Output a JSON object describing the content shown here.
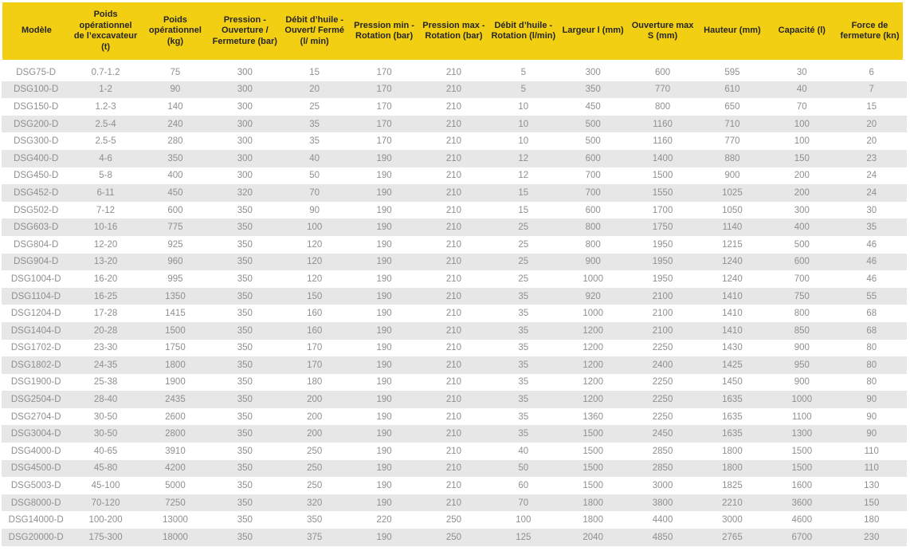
{
  "colors": {
    "header_bg": "#f3cf14",
    "header_text": "#262626",
    "row_bg": "#ffffff",
    "row_alt_bg": "#e7e7e7",
    "cell_text": "#8f8f8f"
  },
  "chart_data": {
    "type": "table",
    "columns": [
      "Modèle",
      "Poids opérationnel de l’excavateur (t)",
      "Poids opérationnel (kg)",
      "Pression - Ouverture / Fermeture (bar)",
      "Débit d’huile - Ouvert/ Fermé (l/ min)",
      "Pression min - Rotation (bar)",
      "Pression max - Rotation (bar)",
      "Débit d’huile - Rotation (l/min)",
      "Largeur l (mm)",
      "Ouverture max S (mm)",
      "Hauteur (mm)",
      "Capacité (l)",
      "Force de fermeture (kn)"
    ],
    "rows": [
      [
        "DSG75-D",
        "0.7-1.2",
        "75",
        "300",
        "15",
        "170",
        "210",
        "5",
        "300",
        "600",
        "595",
        "30",
        "6"
      ],
      [
        "DSG100-D",
        "1-2",
        "90",
        "300",
        "20",
        "170",
        "210",
        "5",
        "350",
        "770",
        "610",
        "40",
        "7"
      ],
      [
        "DSG150-D",
        "1.2-3",
        "140",
        "300",
        "25",
        "170",
        "210",
        "10",
        "450",
        "800",
        "650",
        "70",
        "15"
      ],
      [
        "DSG200-D",
        "2.5-4",
        "240",
        "300",
        "35",
        "170",
        "210",
        "10",
        "500",
        "1160",
        "710",
        "100",
        "20"
      ],
      [
        "DSG300-D",
        "2.5-5",
        "280",
        "300",
        "35",
        "170",
        "210",
        "10",
        "500",
        "1160",
        "770",
        "100",
        "20"
      ],
      [
        "DSG400-D",
        "4-6",
        "350",
        "300",
        "40",
        "190",
        "210",
        "12",
        "600",
        "1400",
        "880",
        "150",
        "23"
      ],
      [
        "DSG450-D",
        "5-8",
        "400",
        "300",
        "50",
        "190",
        "210",
        "12",
        "700",
        "1500",
        "900",
        "200",
        "24"
      ],
      [
        "DSG452-D",
        "6-11",
        "450",
        "320",
        "70",
        "190",
        "210",
        "15",
        "700",
        "1550",
        "1025",
        "200",
        "24"
      ],
      [
        "DSG502-D",
        "7-12",
        "600",
        "350",
        "90",
        "190",
        "210",
        "15",
        "600",
        "1700",
        "1050",
        "300",
        "30"
      ],
      [
        "DSG603-D",
        "10-16",
        "775",
        "350",
        "100",
        "190",
        "210",
        "25",
        "800",
        "1750",
        "1140",
        "400",
        "35"
      ],
      [
        "DSG804-D",
        "12-20",
        "925",
        "350",
        "120",
        "190",
        "210",
        "25",
        "800",
        "1950",
        "1215",
        "500",
        "46"
      ],
      [
        "DSG904-D",
        "13-20",
        "960",
        "350",
        "120",
        "190",
        "210",
        "25",
        "900",
        "1950",
        "1240",
        "600",
        "46"
      ],
      [
        "DSG1004-D",
        "16-20",
        "995",
        "350",
        "120",
        "190",
        "210",
        "25",
        "1000",
        "1950",
        "1240",
        "700",
        "46"
      ],
      [
        "DSG1104-D",
        "16-25",
        "1350",
        "350",
        "150",
        "190",
        "210",
        "35",
        "920",
        "2100",
        "1410",
        "750",
        "55"
      ],
      [
        "DSG1204-D",
        "17-28",
        "1415",
        "350",
        "160",
        "190",
        "210",
        "35",
        "1000",
        "2100",
        "1410",
        "800",
        "68"
      ],
      [
        "DSG1404-D",
        "20-28",
        "1500",
        "350",
        "160",
        "190",
        "210",
        "35",
        "1200",
        "2100",
        "1410",
        "850",
        "68"
      ],
      [
        "DSG1702-D",
        "23-30",
        "1750",
        "350",
        "170",
        "190",
        "210",
        "35",
        "1200",
        "2250",
        "1430",
        "900",
        "80"
      ],
      [
        "DSG1802-D",
        "24-35",
        "1800",
        "350",
        "170",
        "190",
        "210",
        "35",
        "1200",
        "2400",
        "1425",
        "950",
        "80"
      ],
      [
        "DSG1900-D",
        "25-38",
        "1900",
        "350",
        "180",
        "190",
        "210",
        "35",
        "1200",
        "2250",
        "1450",
        "900",
        "80"
      ],
      [
        "DSG2504-D",
        "28-40",
        "2435",
        "350",
        "200",
        "190",
        "210",
        "35",
        "1200",
        "2250",
        "1635",
        "1000",
        "90"
      ],
      [
        "DSG2704-D",
        "30-50",
        "2600",
        "350",
        "200",
        "190",
        "210",
        "35",
        "1360",
        "2250",
        "1635",
        "1100",
        "90"
      ],
      [
        "DSG3004-D",
        "30-50",
        "2800",
        "350",
        "200",
        "190",
        "210",
        "35",
        "1500",
        "2450",
        "1635",
        "1300",
        "90"
      ],
      [
        "DSG4000-D",
        "40-65",
        "3910",
        "350",
        "250",
        "190",
        "210",
        "40",
        "1500",
        "2850",
        "1800",
        "1500",
        "110"
      ],
      [
        "DSG4500-D",
        "45-80",
        "4200",
        "350",
        "250",
        "190",
        "210",
        "50",
        "1500",
        "2850",
        "1800",
        "1500",
        "110"
      ],
      [
        "DSG5003-D",
        "45-100",
        "5000",
        "350",
        "250",
        "190",
        "210",
        "60",
        "1500",
        "3000",
        "1825",
        "1600",
        "130"
      ],
      [
        "DSG8000-D",
        "70-120",
        "7250",
        "350",
        "320",
        "190",
        "210",
        "70",
        "1800",
        "3800",
        "2210",
        "3600",
        "150"
      ],
      [
        "DSG14000-D",
        "100-200",
        "13000",
        "350",
        "350",
        "220",
        "250",
        "100",
        "1800",
        "4400",
        "3000",
        "4600",
        "180"
      ],
      [
        "DSG20000-D",
        "175-300",
        "18000",
        "350",
        "375",
        "190",
        "250",
        "125",
        "2040",
        "4850",
        "2765",
        "6700",
        "230"
      ]
    ]
  }
}
